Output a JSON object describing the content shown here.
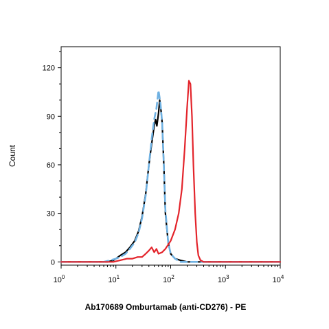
{
  "chart_data": {
    "type": "line",
    "xlabel": "Ab170689 Omburtamab (anti-CD276) - PE",
    "ylabel": "Count",
    "x_scale": "log",
    "xlim": [
      1,
      10000
    ],
    "ylim": [
      -2,
      133
    ],
    "grid": false,
    "legend": "none",
    "x_ticks": [
      {
        "value": 1,
        "base": "10",
        "exp": "0"
      },
      {
        "value": 10,
        "base": "10",
        "exp": "1"
      },
      {
        "value": 100,
        "base": "10",
        "exp": "2"
      },
      {
        "value": 1000,
        "base": "10",
        "exp": "3"
      },
      {
        "value": 10000,
        "base": "10",
        "exp": "4"
      }
    ],
    "y_ticks": [
      {
        "value": 0,
        "label": "0"
      },
      {
        "value": 30,
        "label": "30"
      },
      {
        "value": 60,
        "label": "60"
      },
      {
        "value": 90,
        "label": "90"
      },
      {
        "value": 120,
        "label": "120"
      }
    ],
    "series": [
      {
        "color": "#000000",
        "style": "solid",
        "x": [
          1,
          7,
          9,
          10,
          12,
          15,
          18,
          22,
          26,
          30,
          35,
          40,
          45,
          50,
          53,
          56,
          60,
          63,
          66,
          70,
          75,
          80,
          90,
          100,
          120,
          150,
          200,
          300,
          1000,
          10000
        ],
        "y": [
          0,
          0,
          1,
          2,
          4,
          6,
          9,
          13,
          19,
          28,
          42,
          60,
          73,
          84,
          88,
          84,
          92,
          100,
          95,
          86,
          60,
          30,
          12,
          5,
          2,
          1,
          0,
          0,
          0,
          0
        ]
      },
      {
        "color": "#6fb1e2",
        "style": "dashed",
        "x": [
          1,
          6,
          8,
          10,
          12,
          15,
          18,
          22,
          26,
          30,
          35,
          40,
          45,
          50,
          55,
          60,
          65,
          70,
          75,
          80,
          90,
          100,
          120,
          150,
          300,
          1000,
          10000
        ],
        "y": [
          0,
          0,
          1,
          2,
          3,
          5,
          8,
          12,
          18,
          27,
          41,
          60,
          76,
          88,
          95,
          106,
          98,
          86,
          60,
          32,
          12,
          5,
          2,
          0,
          0,
          0,
          0
        ]
      },
      {
        "color": "#e3242b",
        "style": "solid",
        "x": [
          1,
          9,
          12,
          16,
          20,
          25,
          30,
          35,
          40,
          45,
          50,
          55,
          60,
          70,
          80,
          100,
          120,
          140,
          160,
          180,
          200,
          215,
          230,
          245,
          260,
          280,
          300,
          320,
          350,
          400,
          500,
          1000,
          10000
        ],
        "y": [
          0,
          0,
          1,
          2,
          2,
          3,
          3,
          5,
          7,
          9,
          6,
          8,
          5,
          6,
          8,
          13,
          20,
          30,
          45,
          70,
          96,
          112,
          110,
          90,
          60,
          30,
          12,
          4,
          1,
          0,
          0,
          0,
          0
        ]
      }
    ]
  }
}
